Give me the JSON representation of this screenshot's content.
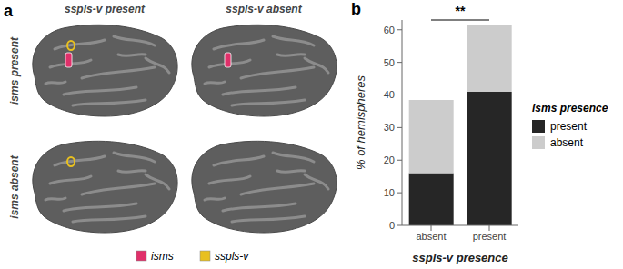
{
  "panels": [
    "a",
    "b"
  ],
  "panel_a": {
    "columns": [
      "sspls-v present",
      "sspls-v absent"
    ],
    "rows": [
      "isms present",
      "isms absent"
    ],
    "legend": [
      {
        "name": "isms",
        "color": "#e0306a"
      },
      {
        "name": "sspls-v",
        "color": "#e8c020"
      }
    ]
  },
  "chart_data": {
    "type": "bar",
    "stacked": true,
    "categories": [
      "absent",
      "present"
    ],
    "series": [
      {
        "name": "present",
        "color": "#262626",
        "values": [
          16,
          41
        ]
      },
      {
        "name": "absent",
        "color": "#cccccc",
        "values": [
          22.5,
          20.5
        ]
      }
    ],
    "x_label": "sspls-v presence",
    "y_label": "% of hemispheres",
    "legend_title": "isms presence",
    "annotation": "**",
    "ylim": [
      0,
      63
    ],
    "yticks": [
      0,
      10,
      20,
      30,
      40,
      50,
      60
    ]
  }
}
